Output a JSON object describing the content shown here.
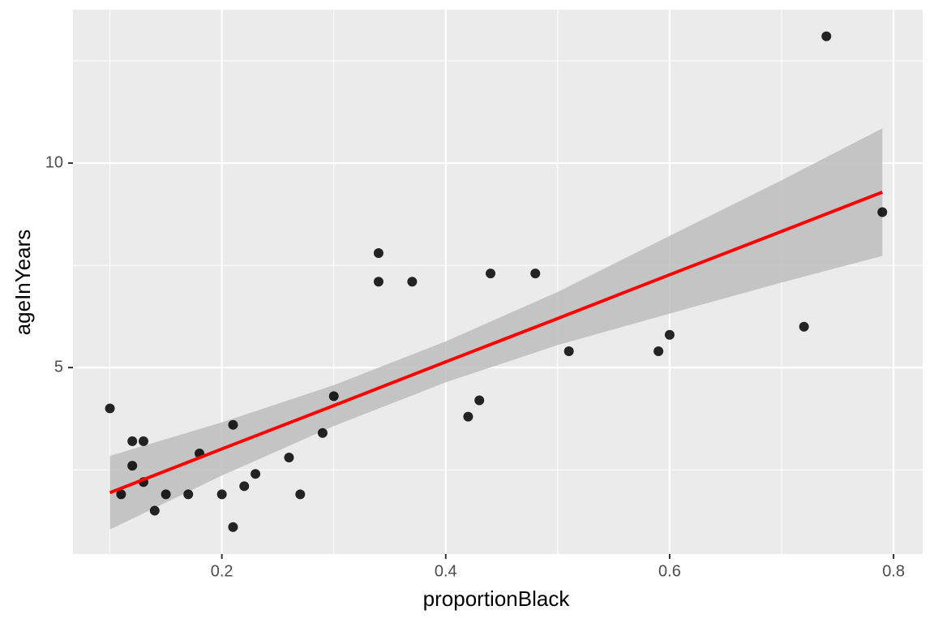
{
  "chart_data": {
    "type": "scatter",
    "xlabel": "proportionBlack",
    "ylabel": "ageInYears",
    "x": [
      0.1,
      0.11,
      0.12,
      0.12,
      0.13,
      0.13,
      0.14,
      0.15,
      0.17,
      0.18,
      0.2,
      0.21,
      0.21,
      0.22,
      0.23,
      0.26,
      0.27,
      0.29,
      0.3,
      0.34,
      0.34,
      0.37,
      0.42,
      0.43,
      0.44,
      0.48,
      0.51,
      0.59,
      0.6,
      0.72,
      0.74,
      0.79
    ],
    "values": [
      4.0,
      1.9,
      3.2,
      2.6,
      3.2,
      2.2,
      1.5,
      1.9,
      1.9,
      2.9,
      1.9,
      3.6,
      1.1,
      2.1,
      2.4,
      2.8,
      1.9,
      3.4,
      4.3,
      7.8,
      7.1,
      7.1,
      3.8,
      4.2,
      7.3,
      7.3,
      5.4,
      5.4,
      5.8,
      6.0,
      13.1,
      8.8
    ],
    "color": "#000000",
    "fit": {
      "color": "#ff0000",
      "band_color": "#bdbdbd",
      "x": [
        0.1,
        0.2,
        0.3,
        0.4,
        0.5,
        0.6,
        0.7,
        0.79
      ],
      "y": [
        1.94,
        3.01,
        4.07,
        5.14,
        6.2,
        7.27,
        8.33,
        9.29
      ],
      "upper": [
        2.84,
        3.66,
        4.57,
        5.64,
        6.85,
        8.22,
        9.58,
        10.85
      ],
      "lower": [
        1.04,
        2.36,
        3.57,
        4.64,
        5.55,
        6.32,
        7.08,
        7.73
      ]
    },
    "xlim": [
      0.067,
      0.826
    ],
    "ylim": [
      0.44,
      13.75
    ],
    "xticks": [
      0.2,
      0.4,
      0.6,
      0.8
    ],
    "yticks": [
      5,
      10
    ],
    "xminor": [
      0.1,
      0.3,
      0.5,
      0.7
    ],
    "yminor": [
      2.5,
      7.5,
      12.5
    ],
    "grid": true
  }
}
